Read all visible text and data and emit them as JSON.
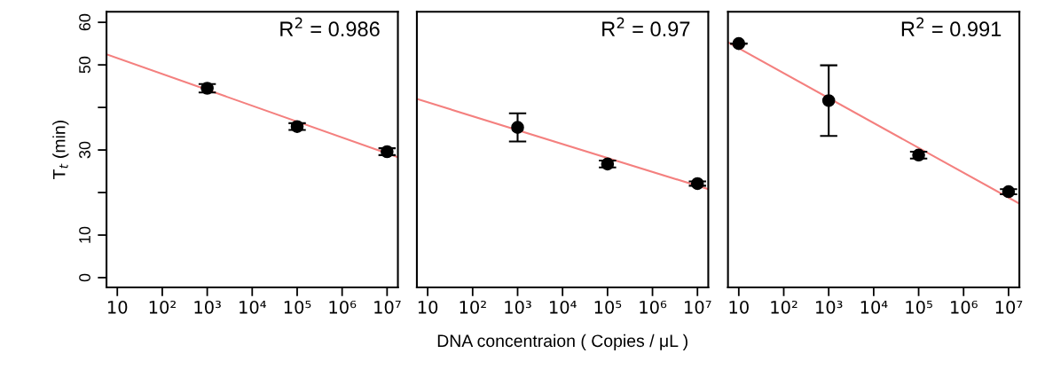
{
  "chart_data": [
    {
      "type": "scatter",
      "ylabel": "T$_{t}$ (min)",
      "annotations": [
        "R$^{2}$ = 0.986"
      ],
      "log": "x",
      "grid": false,
      "xlim": [
        5.75,
        17400000
      ],
      "xticks": [
        {
          "value": 10,
          "label": "10"
        },
        {
          "value": 100,
          "label": "10²"
        },
        {
          "value": 1000,
          "label": "10³"
        },
        {
          "value": 10000,
          "label": "10⁴"
        },
        {
          "value": 100000,
          "label": "10⁵"
        },
        {
          "value": 1000000,
          "label": "10⁶"
        },
        {
          "value": 10000000,
          "label": "10⁷"
        }
      ],
      "ylim": [
        -2.3,
        62.5
      ],
      "yticks": [
        0,
        10,
        {
          "value": 20,
          "label": null
        },
        30,
        {
          "value": 40,
          "label": null
        },
        50,
        60
      ],
      "series": [
        {
          "marker": "circle",
          "color": "#000000",
          "x": [
            1000,
            100000,
            10000000
          ],
          "values": [
            44.5,
            35.5,
            29.6
          ],
          "errors": [
            1.0,
            0.8,
            0.8
          ]
        },
        {
          "type": "line",
          "color": "#f4807f",
          "x": [
            5.75,
            17400000
          ],
          "values": [
            52.5,
            28.3
          ]
        }
      ]
    },
    {
      "type": "scatter",
      "xlabel": "DNA concentraion ( Copies / μL )",
      "annotations": [
        "R$^{2}$ = 0.97"
      ],
      "log": "x",
      "grid": false,
      "tick_labels": "x",
      "xlim": [
        5.75,
        17400000
      ],
      "xticks": [
        {
          "value": 10,
          "label": "10"
        },
        {
          "value": 100,
          "label": "10²"
        },
        {
          "value": 1000,
          "label": "10³"
        },
        {
          "value": 10000,
          "label": "10⁴"
        },
        {
          "value": 100000,
          "label": "10⁵"
        },
        {
          "value": 1000000,
          "label": "10⁶"
        },
        {
          "value": 10000000,
          "label": "10⁷"
        }
      ],
      "ylim": [
        -2.3,
        62.5
      ],
      "series": [
        {
          "marker": "circle",
          "color": "#000000",
          "x": [
            1000,
            100000,
            10000000
          ],
          "values": [
            35.3,
            26.7,
            22.1
          ],
          "errors": [
            [
              32.0,
              38.6
            ],
            0.8,
            0.5
          ]
        },
        {
          "type": "line",
          "color": "#f4807f",
          "x": [
            5.75,
            17400000
          ],
          "values": [
            42.0,
            20.8
          ]
        }
      ]
    },
    {
      "type": "scatter",
      "annotations": [
        "R$^{2}$ = 0.991"
      ],
      "log": "x",
      "grid": false,
      "tick_labels": "x",
      "xlim": [
        5.75,
        17400000
      ],
      "xticks": [
        {
          "value": 10,
          "label": "10"
        },
        {
          "value": 100,
          "label": "10²"
        },
        {
          "value": 1000,
          "label": "10³"
        },
        {
          "value": 10000,
          "label": "10⁴"
        },
        {
          "value": 100000,
          "label": "10⁵"
        },
        {
          "value": 1000000,
          "label": "10⁶"
        },
        {
          "value": 10000000,
          "label": "10⁷"
        }
      ],
      "ylim": [
        -2.3,
        62.5
      ],
      "series": [
        {
          "marker": "circle",
          "color": "#000000",
          "x": [
            10,
            1000,
            100000,
            10000000
          ],
          "values": [
            55.0,
            41.6,
            28.8,
            20.2
          ],
          "errors": [
            null,
            [
              33.3,
              49.9
            ],
            0.8,
            0.6
          ]
        },
        {
          "type": "line",
          "color": "#f4807f",
          "x": [
            5.75,
            17400000
          ],
          "values": [
            55.3,
            17.4
          ]
        }
      ]
    }
  ]
}
